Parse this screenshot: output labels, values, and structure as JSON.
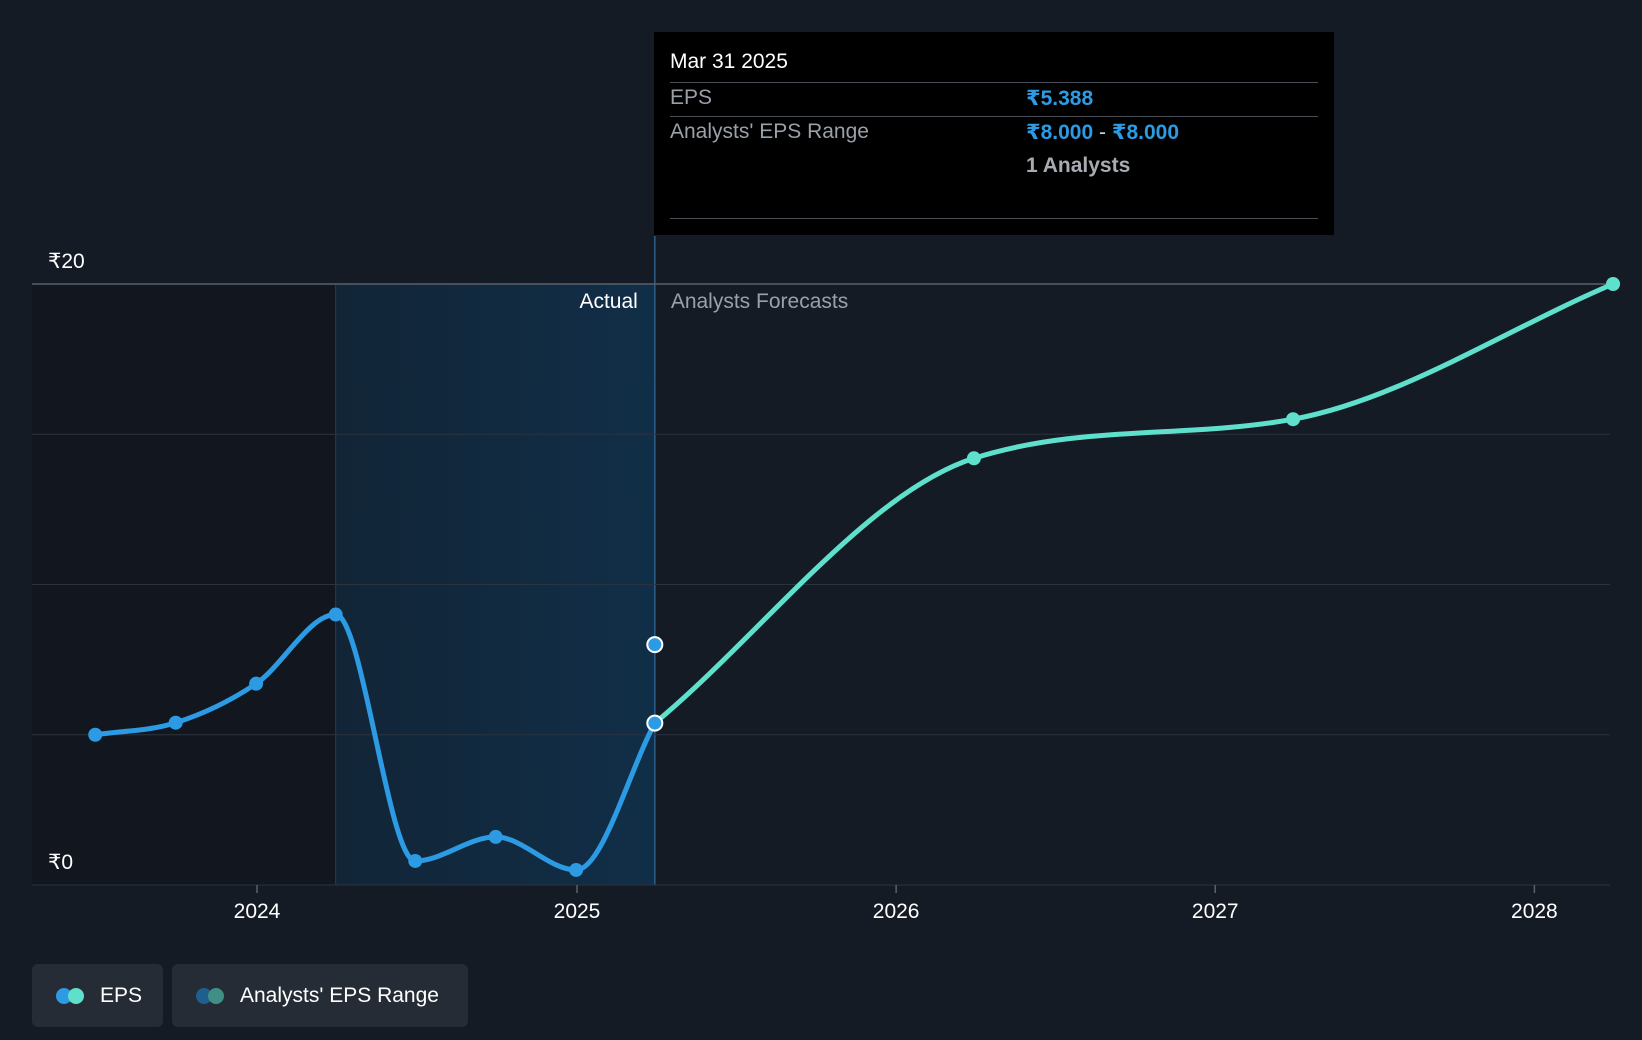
{
  "chart_data": {
    "type": "line",
    "currency_symbol": "₹",
    "y_axis": {
      "min": 0,
      "max": 20,
      "tick_labels": [
        "₹0",
        "₹20"
      ]
    },
    "x_axis": {
      "tick_labels": [
        "2024",
        "2025",
        "2026",
        "2027",
        "2028"
      ]
    },
    "sections": {
      "actual_label": "Actual",
      "forecast_label": "Analysts Forecasts"
    },
    "series": [
      {
        "name": "EPS",
        "kind": "actual",
        "color": "#2c9be3",
        "points": [
          {
            "x": "2023-06-30",
            "y": 5.0
          },
          {
            "x": "2023-09-30",
            "y": 5.4
          },
          {
            "x": "2023-12-31",
            "y": 6.7
          },
          {
            "x": "2024-03-31",
            "y": 9.0
          },
          {
            "x": "2024-06-30",
            "y": 0.8
          },
          {
            "x": "2024-09-30",
            "y": 1.6
          },
          {
            "x": "2024-12-31",
            "y": 0.5
          },
          {
            "x": "2025-03-31",
            "y": 5.388
          }
        ]
      },
      {
        "name": "EPS",
        "kind": "forecast",
        "color": "#5fe0cc",
        "points": [
          {
            "x": "2025-03-31",
            "y": 5.388
          },
          {
            "x": "2026-03-31",
            "y": 14.2
          },
          {
            "x": "2027-03-31",
            "y": 15.5
          },
          {
            "x": "2028-03-31",
            "y": 20.0
          }
        ]
      },
      {
        "name": "Analysts' EPS Range",
        "kind": "range",
        "color": "#2c9be3",
        "points": [
          {
            "x": "2025-03-31",
            "low": 8.0,
            "high": 8.0
          }
        ]
      }
    ]
  },
  "tooltip": {
    "date": "Mar 31 2025",
    "eps_label": "EPS",
    "eps_value": "₹5.388",
    "range_label": "Analysts' EPS Range",
    "range_low": "₹8.000",
    "range_sep": "-",
    "range_high": "₹8.000",
    "analysts": "1 Analysts"
  },
  "legend": {
    "eps_label": "EPS",
    "range_label": "Analysts' EPS Range"
  },
  "colors": {
    "background": "#151b24",
    "actual": "#2c9be3",
    "forecast": "#5fe0cc",
    "range_dot_1": "#1f5f8f",
    "range_dot_2": "#3f8f86"
  }
}
